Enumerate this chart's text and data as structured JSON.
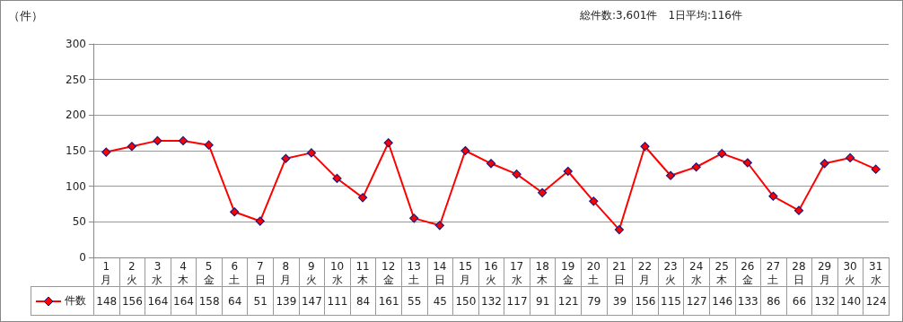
{
  "chart_data": {
    "type": "line",
    "ylabel": "（件）",
    "annotations": [
      "総件数:3,601件　1日平均:116件"
    ],
    "categories": [
      "1\n月",
      "2\n火",
      "3\n水",
      "4\n木",
      "5\n金",
      "6\n土",
      "7\n日",
      "8\n月",
      "9\n火",
      "10\n水",
      "11\n木",
      "12\n金",
      "13\n土",
      "14\n日",
      "15\n月",
      "16\n火",
      "17\n水",
      "18\n木",
      "19\n金",
      "20\n土",
      "21\n日",
      "22\n月",
      "23\n火",
      "24\n水",
      "25\n木",
      "26\n金",
      "27\n土",
      "28\n日",
      "29\n月",
      "30\n火",
      "31\n水"
    ],
    "series": [
      {
        "name": "件数",
        "color": "#ff0000",
        "values": [
          148,
          156,
          164,
          164,
          158,
          64,
          51,
          139,
          147,
          111,
          84,
          161,
          55,
          45,
          150,
          132,
          117,
          91,
          121,
          79,
          39,
          156,
          115,
          127,
          146,
          133,
          86,
          66,
          132,
          140,
          124
        ]
      }
    ],
    "ylim": [
      0,
      300
    ],
    "yticks": [
      0,
      50,
      100,
      150,
      200,
      250,
      300
    ],
    "grid": "y",
    "marker": "diamond",
    "line_style": "solid",
    "legend": "bottom",
    "data_labels": true
  }
}
